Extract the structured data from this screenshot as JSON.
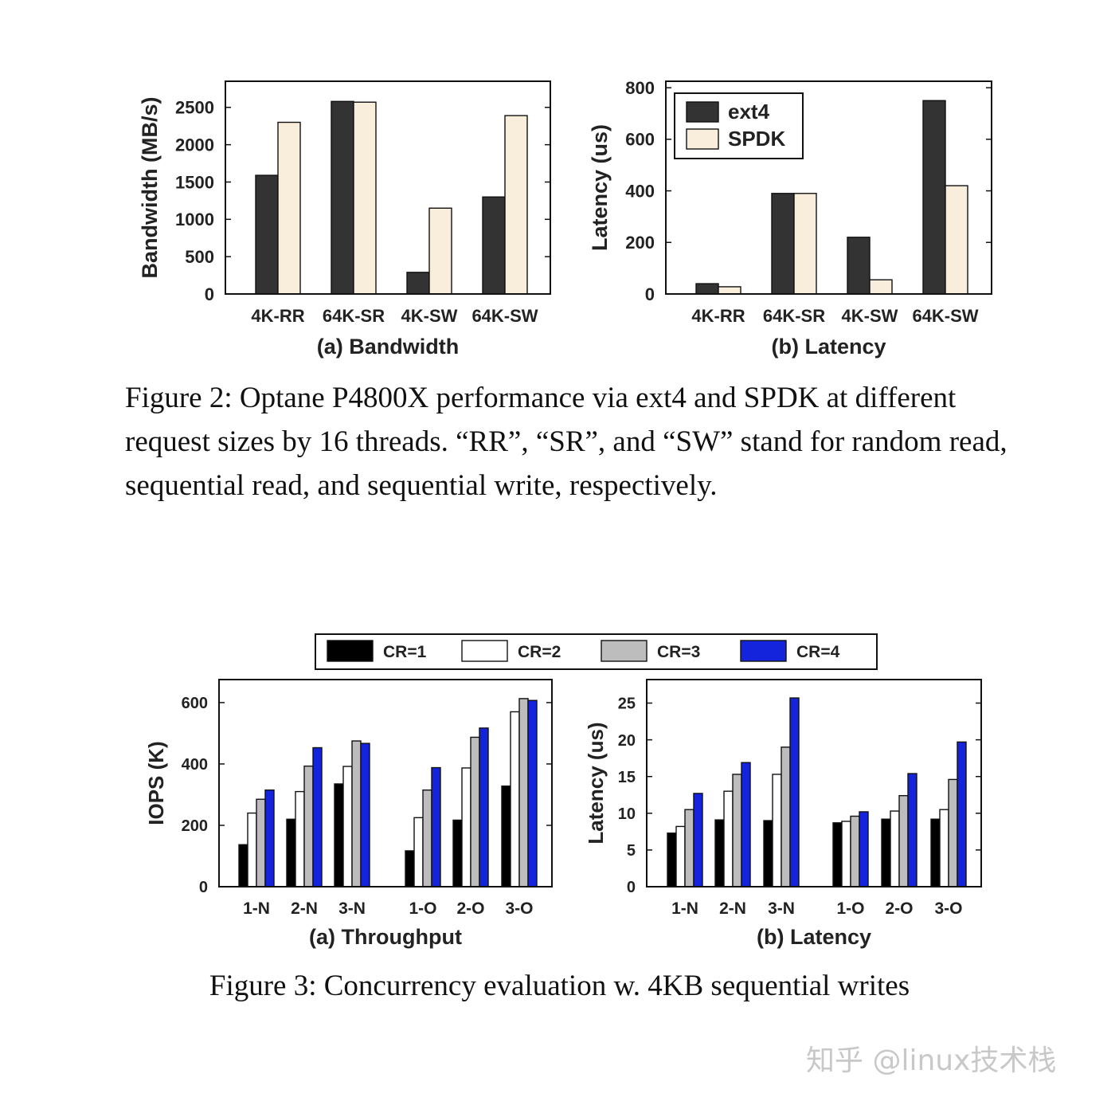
{
  "figures": {
    "fig2": {
      "caption": "Figure 2: Optane P4800X performance via ext4 and SPDK at different request sizes by 16 threads. “RR”, “SR”, and “SW” stand for random read, sequential read, and sequential write, respectively.",
      "legend": [
        {
          "label": "ext4",
          "color": "#333333"
        },
        {
          "label": "SPDK",
          "color": "#f9eddb"
        }
      ]
    },
    "fig3": {
      "caption": "Figure 3: Concurrency evaluation w. 4KB sequential writes",
      "legend": [
        {
          "label": "CR=1",
          "color": "#000000"
        },
        {
          "label": "CR=2",
          "color": "#ffffff"
        },
        {
          "label": "CR=3",
          "color": "#bdbdbd"
        },
        {
          "label": "CR=4",
          "color": "#1424dc"
        }
      ]
    }
  },
  "watermark": "知乎 @linux技术栈",
  "chart_data": [
    {
      "id": "fig2a",
      "type": "bar",
      "title": "(a) Bandwidth",
      "xlabel": "",
      "ylabel": "Bandwidth (MB/s)",
      "ylim": [
        0,
        2850
      ],
      "yticks": [
        0,
        500,
        1000,
        1500,
        2000,
        2500
      ],
      "categories": [
        "4K-RR",
        "64K-SR",
        "4K-SW",
        "64K-SW"
      ],
      "series": [
        {
          "name": "ext4",
          "color": "#333333",
          "values": [
            1590,
            2580,
            290,
            1300
          ]
        },
        {
          "name": "SPDK",
          "color": "#f9eddb",
          "values": [
            2300,
            2570,
            1150,
            2390
          ]
        }
      ]
    },
    {
      "id": "fig2b",
      "type": "bar",
      "title": "(b) Latency",
      "xlabel": "",
      "ylabel": "Latency (us)",
      "ylim": [
        0,
        825
      ],
      "yticks": [
        0,
        200,
        400,
        600,
        800
      ],
      "categories": [
        "4K-RR",
        "64K-SR",
        "4K-SW",
        "64K-SW"
      ],
      "series": [
        {
          "name": "ext4",
          "color": "#333333",
          "values": [
            40,
            390,
            220,
            750
          ]
        },
        {
          "name": "SPDK",
          "color": "#f9eddb",
          "values": [
            28,
            390,
            55,
            420
          ]
        }
      ]
    },
    {
      "id": "fig3a",
      "type": "bar",
      "title": "(a) Throughput",
      "xlabel": "",
      "ylabel": "IOPS (K)",
      "ylim": [
        0,
        675
      ],
      "yticks": [
        0,
        200,
        400,
        600
      ],
      "categories": [
        "1-N",
        "2-N",
        "3-N",
        "1-O",
        "2-O",
        "3-O"
      ],
      "series": [
        {
          "name": "CR=1",
          "color": "#000000",
          "values": [
            137,
            220,
            335,
            117,
            217,
            328
          ]
        },
        {
          "name": "CR=2",
          "color": "#ffffff",
          "values": [
            240,
            310,
            392,
            225,
            387,
            570
          ]
        },
        {
          "name": "CR=3",
          "color": "#bdbdbd",
          "values": [
            285,
            393,
            475,
            315,
            487,
            613
          ]
        },
        {
          "name": "CR=4",
          "color": "#1424dc",
          "values": [
            315,
            453,
            467,
            388,
            517,
            607
          ]
        }
      ]
    },
    {
      "id": "fig3b",
      "type": "bar",
      "title": "(b) Latency",
      "xlabel": "",
      "ylabel": "Latency (us)",
      "ylim": [
        0,
        28.2
      ],
      "yticks": [
        0,
        5,
        10,
        15,
        20,
        25
      ],
      "categories": [
        "1-N",
        "2-N",
        "3-N",
        "1-O",
        "2-O",
        "3-O"
      ],
      "series": [
        {
          "name": "CR=1",
          "color": "#000000",
          "values": [
            7.3,
            9.1,
            9.0,
            8.7,
            9.2,
            9.2
          ]
        },
        {
          "name": "CR=2",
          "color": "#ffffff",
          "values": [
            8.2,
            13.0,
            15.3,
            8.9,
            10.3,
            10.5
          ]
        },
        {
          "name": "CR=3",
          "color": "#bdbdbd",
          "values": [
            10.5,
            15.3,
            19.0,
            9.6,
            12.4,
            14.6
          ]
        },
        {
          "name": "CR=4",
          "color": "#1424dc",
          "values": [
            12.7,
            16.9,
            25.7,
            10.2,
            15.4,
            19.7
          ]
        }
      ]
    }
  ]
}
